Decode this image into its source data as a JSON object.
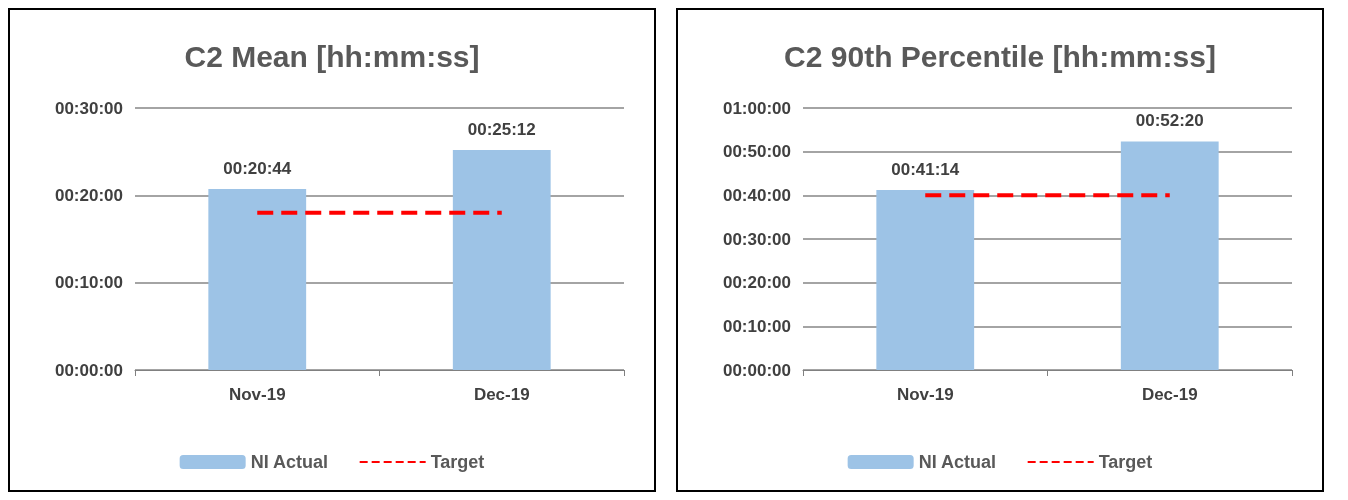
{
  "chart_data": [
    {
      "type": "bar",
      "title": "C2 Mean [hh:mm:ss]",
      "categories": [
        "Nov-19",
        "Dec-19"
      ],
      "series": [
        {
          "name": "NI Actual",
          "color": "#9dc3e6",
          "values": [
            1244,
            1512
          ],
          "value_labels": [
            "00:20:44",
            "00:25:12"
          ]
        },
        {
          "name": "Target",
          "type": "line",
          "color": "#ff0000",
          "values": [
            1080,
            1080
          ],
          "line_style": "dashed",
          "marker": "none"
        }
      ],
      "ylim": [
        0,
        1800
      ],
      "yticks": [
        {
          "value": 0,
          "label": "00:00:00"
        },
        {
          "value": 600,
          "label": "00:10:00"
        },
        {
          "value": 1200,
          "label": "00:20:00"
        },
        {
          "value": 1800,
          "label": "00:30:00"
        }
      ],
      "grid": "y",
      "legend": "bottom"
    },
    {
      "type": "bar",
      "title": "C2 90th Percentile [hh:mm:ss]",
      "categories": [
        "Nov-19",
        "Dec-19"
      ],
      "series": [
        {
          "name": "NI Actual",
          "color": "#9dc3e6",
          "values": [
            2474,
            3140
          ],
          "value_labels": [
            "00:41:14",
            "00:52:20"
          ]
        },
        {
          "name": "Target",
          "type": "line",
          "color": "#ff0000",
          "values": [
            2400,
            2400
          ],
          "line_style": "dashed",
          "marker": "none"
        }
      ],
      "ylim": [
        0,
        3600
      ],
      "yticks": [
        {
          "value": 0,
          "label": "00:00:00"
        },
        {
          "value": 600,
          "label": "00:10:00"
        },
        {
          "value": 1200,
          "label": "00:20:00"
        },
        {
          "value": 1800,
          "label": "00:30:00"
        },
        {
          "value": 2400,
          "label": "00:40:00"
        },
        {
          "value": 3000,
          "label": "00:50:00"
        },
        {
          "value": 3600,
          "label": "01:00:00"
        }
      ],
      "grid": "y",
      "legend": "bottom"
    }
  ]
}
